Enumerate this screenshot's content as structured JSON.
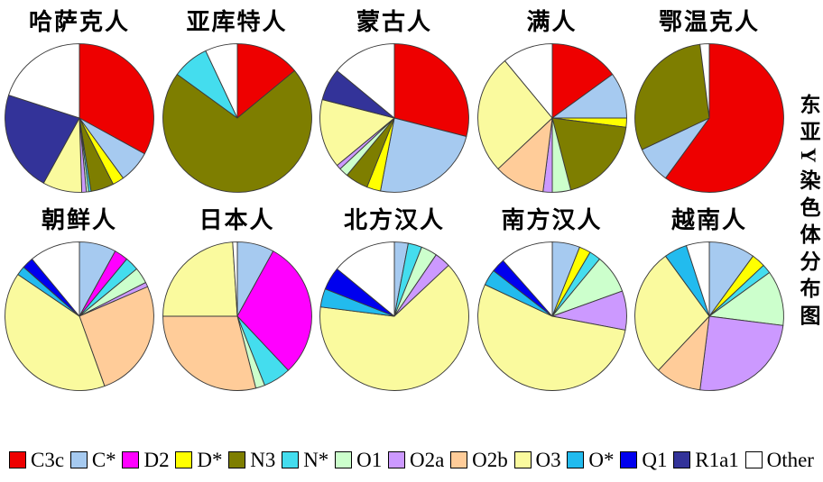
{
  "page": {
    "background": "#FFFFFF",
    "right_title": "东亚Y染色体分布图"
  },
  "legend": {
    "position": "bottom",
    "items": [
      {
        "label": "C3c",
        "color": "#EE0000"
      },
      {
        "label": "C*",
        "color": "#A6CAF0"
      },
      {
        "label": "D2",
        "color": "#FF00FF"
      },
      {
        "label": "D*",
        "color": "#FFFF00"
      },
      {
        "label": "N3",
        "color": "#7E7E00"
      },
      {
        "label": "N*",
        "color": "#44DDEE"
      },
      {
        "label": "O1",
        "color": "#CCFFCC"
      },
      {
        "label": "O2a",
        "color": "#CC99FF"
      },
      {
        "label": "O2b",
        "color": "#FFCC99"
      },
      {
        "label": "O3",
        "color": "#FAFA9E"
      },
      {
        "label": "O*",
        "color": "#22BBEE"
      },
      {
        "label": "Q1",
        "color": "#0000EE"
      },
      {
        "label": "R1a1",
        "color": "#333399"
      },
      {
        "label": "Other",
        "color": "#FFFFFF"
      }
    ]
  },
  "chart_data": {
    "type": "pie",
    "title": "东亚Y染色体分布图",
    "legend_position": "bottom",
    "units": "percent",
    "slice_order": "clockwise from 12 o'clock",
    "pies": [
      {
        "title": "哈萨克人",
        "slices": [
          {
            "label": "C3c",
            "value": 33
          },
          {
            "label": "C*",
            "value": 7
          },
          {
            "label": "D*",
            "value": 2.5
          },
          {
            "label": "N3",
            "value": 5
          },
          {
            "label": "N*",
            "value": 0.5
          },
          {
            "label": "O1",
            "value": 0.5
          },
          {
            "label": "O2a",
            "value": 1
          },
          {
            "label": "O3",
            "value": 8.5
          },
          {
            "label": "R1a1",
            "value": 22
          },
          {
            "label": "Other",
            "value": 20
          }
        ]
      },
      {
        "title": "亚库特人",
        "slices": [
          {
            "label": "C3c",
            "value": 14
          },
          {
            "label": "N3",
            "value": 71
          },
          {
            "label": "N*",
            "value": 8
          },
          {
            "label": "Other",
            "value": 7
          }
        ]
      },
      {
        "title": "蒙古人",
        "slices": [
          {
            "label": "C3c",
            "value": 29
          },
          {
            "label": "C*",
            "value": 24
          },
          {
            "label": "D*",
            "value": 3
          },
          {
            "label": "N3",
            "value": 5
          },
          {
            "label": "O1",
            "value": 2
          },
          {
            "label": "O2a",
            "value": 1
          },
          {
            "label": "O3",
            "value": 15
          },
          {
            "label": "R1a1",
            "value": 7
          },
          {
            "label": "Other",
            "value": 14
          }
        ]
      },
      {
        "title": "满人",
        "slices": [
          {
            "label": "C3c",
            "value": 15
          },
          {
            "label": "C*",
            "value": 10
          },
          {
            "label": "D*",
            "value": 2
          },
          {
            "label": "N3",
            "value": 19
          },
          {
            "label": "O1",
            "value": 4
          },
          {
            "label": "O2a",
            "value": 2
          },
          {
            "label": "O2b",
            "value": 11
          },
          {
            "label": "O3",
            "value": 26
          },
          {
            "label": "Other",
            "value": 11
          }
        ]
      },
      {
        "title": "鄂温克人",
        "slices": [
          {
            "label": "C3c",
            "value": 60
          },
          {
            "label": "C*",
            "value": 8
          },
          {
            "label": "N3",
            "value": 30
          },
          {
            "label": "Other",
            "value": 2
          }
        ]
      },
      {
        "title": "朝鲜人",
        "slices": [
          {
            "label": "C*",
            "value": 8
          },
          {
            "label": "D2",
            "value": 3
          },
          {
            "label": "N*",
            "value": 3
          },
          {
            "label": "O1",
            "value": 3.5
          },
          {
            "label": "O2a",
            "value": 1
          },
          {
            "label": "O2b",
            "value": 26
          },
          {
            "label": "O3",
            "value": 40
          },
          {
            "label": "O*",
            "value": 2
          },
          {
            "label": "Q1",
            "value": 2.5
          },
          {
            "label": "Other",
            "value": 11
          }
        ]
      },
      {
        "title": "日本人",
        "slices": [
          {
            "label": "C*",
            "value": 8
          },
          {
            "label": "D2",
            "value": 30
          },
          {
            "label": "N*",
            "value": 6
          },
          {
            "label": "O1",
            "value": 2
          },
          {
            "label": "O2b",
            "value": 29
          },
          {
            "label": "O3",
            "value": 24
          },
          {
            "label": "Other",
            "value": 1
          }
        ]
      },
      {
        "title": "北方汉人",
        "slices": [
          {
            "label": "C*",
            "value": 3
          },
          {
            "label": "N*",
            "value": 3
          },
          {
            "label": "O1",
            "value": 3.5
          },
          {
            "label": "O2a",
            "value": 3.5
          },
          {
            "label": "O3",
            "value": 64
          },
          {
            "label": "O*",
            "value": 4
          },
          {
            "label": "Q1",
            "value": 5
          },
          {
            "label": "Other",
            "value": 14
          }
        ]
      },
      {
        "title": "南方汉人",
        "slices": [
          {
            "label": "C*",
            "value": 6
          },
          {
            "label": "D*",
            "value": 2.5
          },
          {
            "label": "N*",
            "value": 2.5
          },
          {
            "label": "O1",
            "value": 8.5
          },
          {
            "label": "O2a",
            "value": 8.5
          },
          {
            "label": "O3",
            "value": 54
          },
          {
            "label": "O*",
            "value": 3.5
          },
          {
            "label": "Q1",
            "value": 3
          },
          {
            "label": "Other",
            "value": 11.5
          }
        ]
      },
      {
        "title": "越南人",
        "slices": [
          {
            "label": "C*",
            "value": 10
          },
          {
            "label": "D*",
            "value": 3
          },
          {
            "label": "N*",
            "value": 2
          },
          {
            "label": "O1",
            "value": 12
          },
          {
            "label": "O2a",
            "value": 25
          },
          {
            "label": "O2b",
            "value": 10
          },
          {
            "label": "O3",
            "value": 28
          },
          {
            "label": "O*",
            "value": 5
          },
          {
            "label": "Other",
            "value": 5
          }
        ]
      }
    ]
  }
}
